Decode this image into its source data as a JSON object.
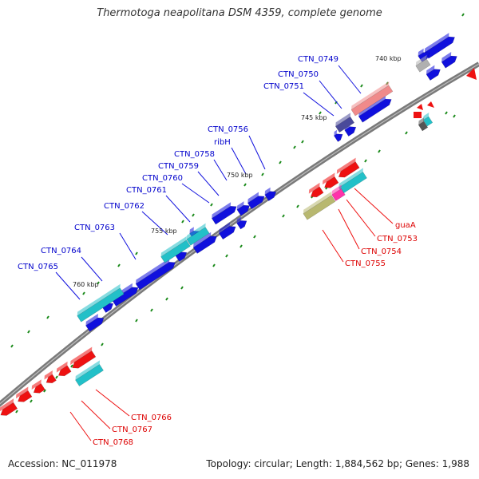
{
  "title": "Thermotoga neapolitana DSM 4359, complete genome",
  "footer": {
    "accession": "Accession: NC_011978",
    "summary": "Topology: circular; Length: 1,884,562 bp; Genes: 1,988"
  },
  "colors": {
    "forward": "#1010dd",
    "reverse": "#ee1111",
    "teal": "#22c0c8",
    "backbone": "#7a7a7a",
    "tick": "#1a8a1a",
    "label_forward": "#0000cc",
    "label_reverse": "#dd0000"
  },
  "scale_labels": [
    "740 kbp",
    "745 kbp",
    "750 kbp",
    "755 kbp",
    "760 kbp"
  ],
  "forward_labels": [
    "CTN_0749",
    "CTN_0750",
    "CTN_0751",
    "CTN_0756",
    "ribH",
    "CTN_0758",
    "CTN_0759",
    "CTN_0760",
    "CTN_0761",
    "CTN_0762",
    "CTN_0763",
    "CTN_0764",
    "CTN_0765"
  ],
  "reverse_labels": [
    "guaA",
    "CTN_0753",
    "CTN_0754",
    "CTN_0755",
    "CTN_0766",
    "CTN_0767",
    "CTN_0768"
  ]
}
